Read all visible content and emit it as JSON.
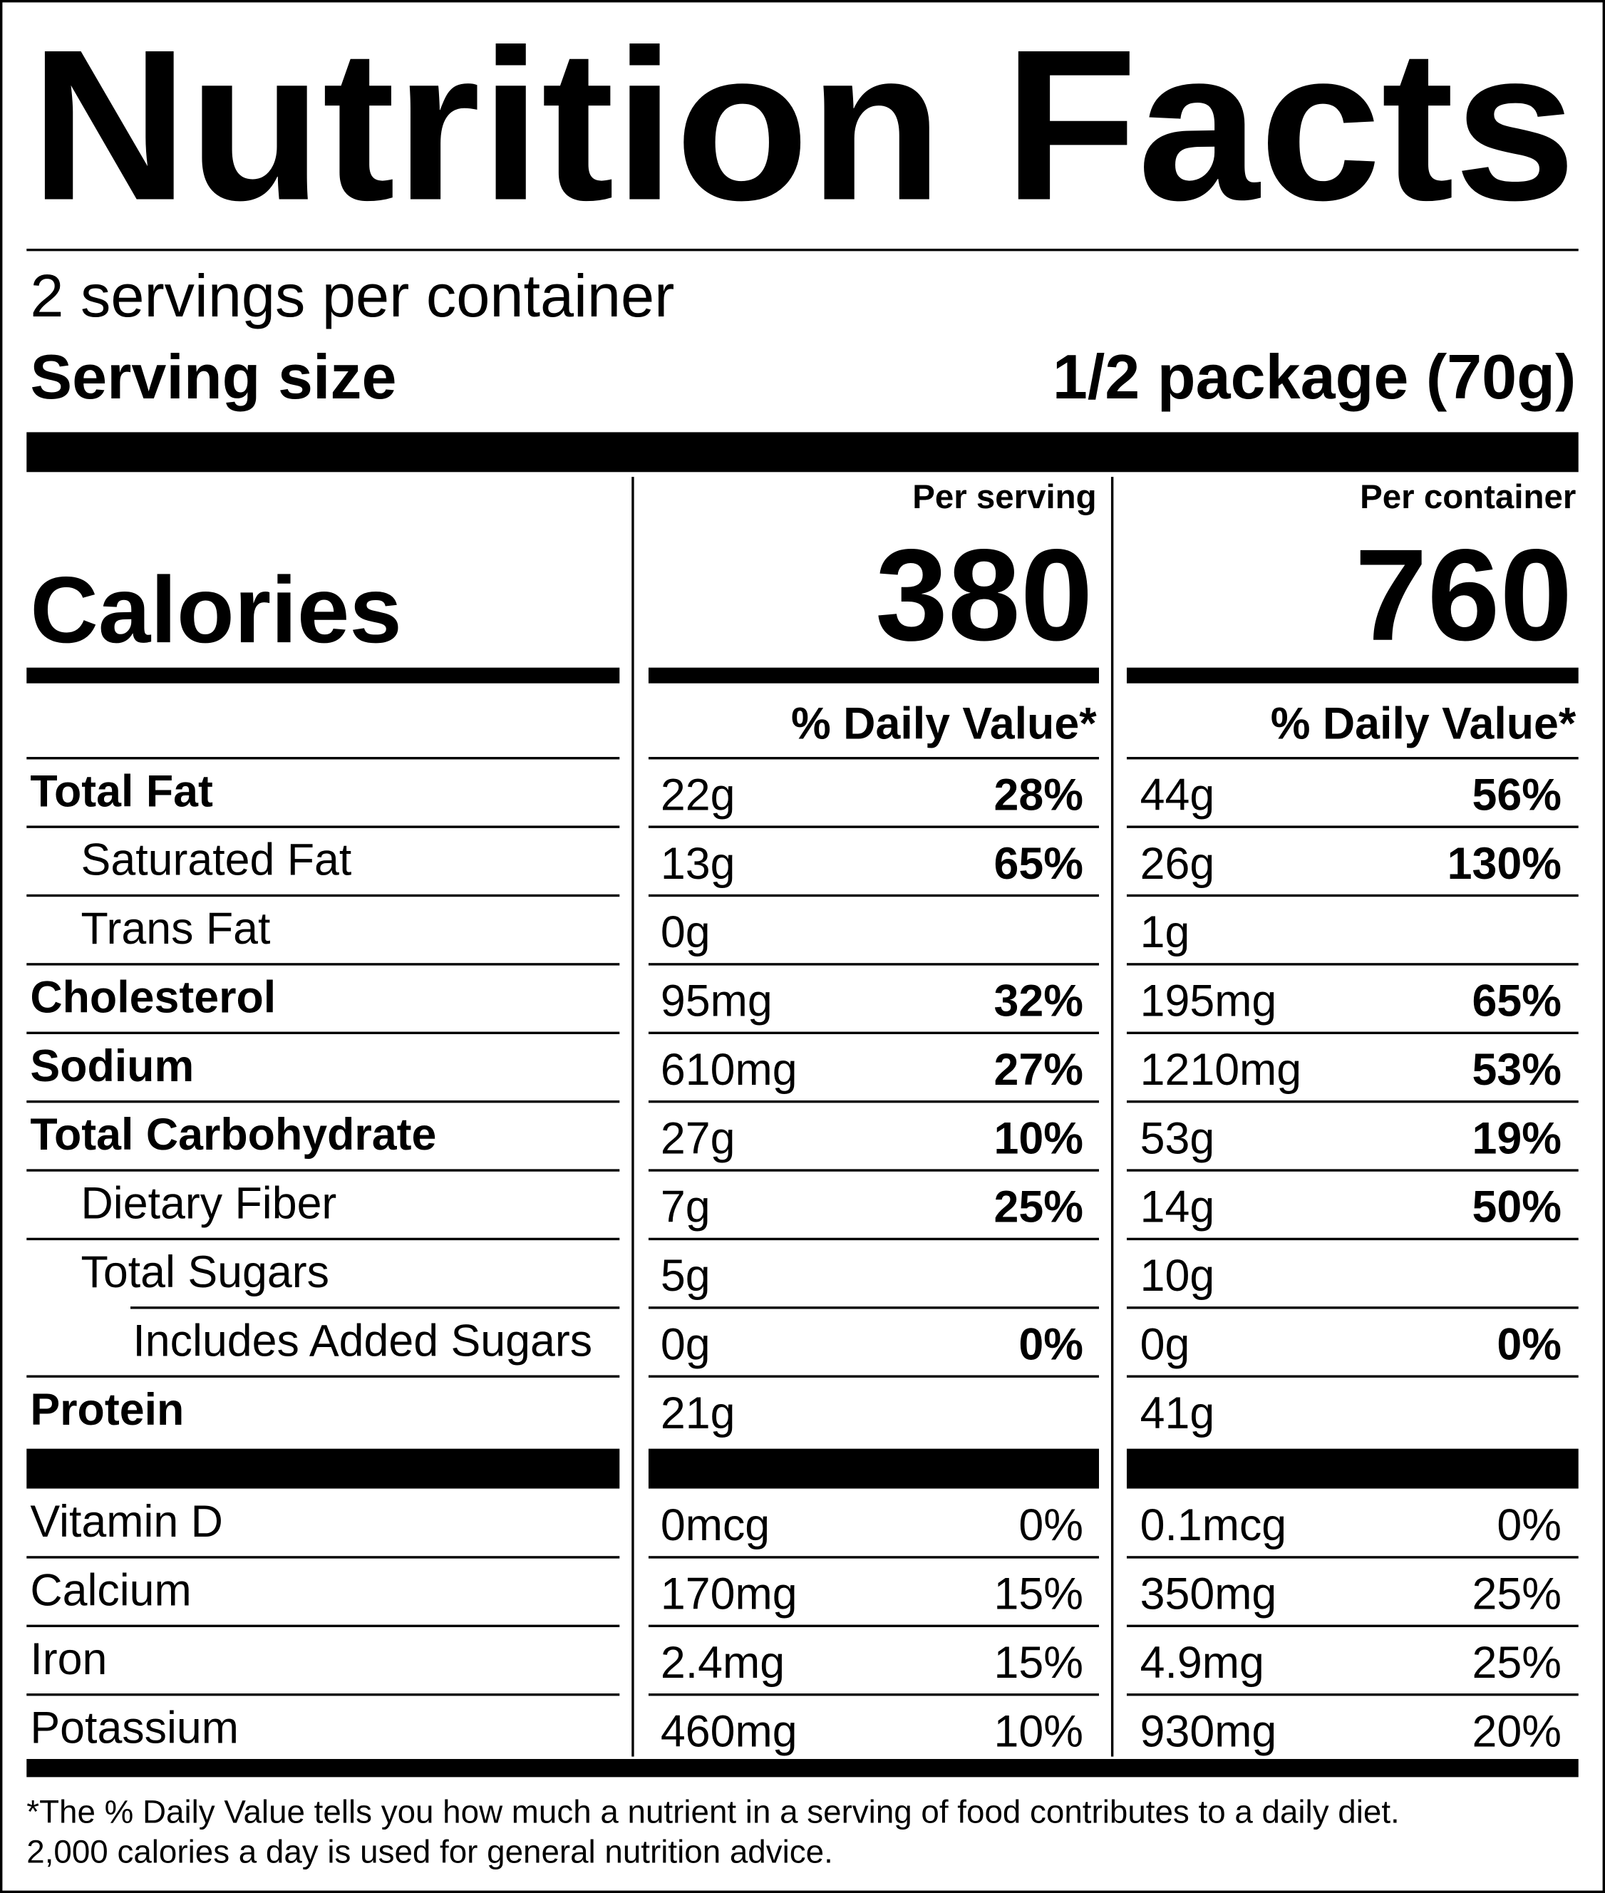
{
  "title": "Nutrition Facts",
  "servings_per_container": "2 servings per container",
  "serving_size": {
    "label": "Serving size",
    "value": "1/2 package (70g)"
  },
  "columns": [
    "Per serving",
    "Per container"
  ],
  "calories": {
    "label": "Calories",
    "values": [
      "380",
      "760"
    ]
  },
  "daily_value_header": "% Daily Value*",
  "nutrients": [
    {
      "name": "Total Fat",
      "per_serving": {
        "amount": "22g",
        "dv": "28%"
      },
      "per_container": {
        "amount": "44g",
        "dv": "56%"
      }
    },
    {
      "name": "Saturated Fat",
      "per_serving": {
        "amount": "13g",
        "dv": "65%"
      },
      "per_container": {
        "amount": "26g",
        "dv": "130%"
      }
    },
    {
      "name": "Trans Fat",
      "per_serving": {
        "amount": "0g"
      },
      "per_container": {
        "amount": "1g"
      }
    },
    {
      "name": "Cholesterol",
      "per_serving": {
        "amount": "95mg",
        "dv": "32%"
      },
      "per_container": {
        "amount": "195mg",
        "dv": "65%"
      }
    },
    {
      "name": "Sodium",
      "per_serving": {
        "amount": "610mg",
        "dv": "27%"
      },
      "per_container": {
        "amount": "1210mg",
        "dv": "53%"
      }
    },
    {
      "name": "Total Carbohydrate",
      "per_serving": {
        "amount": "27g",
        "dv": "10%"
      },
      "per_container": {
        "amount": "53g",
        "dv": "19%"
      }
    },
    {
      "name": "Dietary Fiber",
      "per_serving": {
        "amount": "7g",
        "dv": "25%"
      },
      "per_container": {
        "amount": "14g",
        "dv": "50%"
      }
    },
    {
      "name": "Total Sugars",
      "per_serving": {
        "amount": "5g"
      },
      "per_container": {
        "amount": "10g"
      }
    },
    {
      "name": "Includes Added Sugars",
      "per_serving": {
        "amount": "0g",
        "dv": "0%"
      },
      "per_container": {
        "amount": "0g",
        "dv": "0%"
      }
    },
    {
      "name": "Protein",
      "per_serving": {
        "amount": "21g"
      },
      "per_container": {
        "amount": "41g"
      }
    }
  ],
  "vitamins": [
    {
      "name": "Vitamin D",
      "per_serving": {
        "amount": "0mcg",
        "dv": "0%"
      },
      "per_container": {
        "amount": "0.1mcg",
        "dv": "0%"
      }
    },
    {
      "name": "Calcium",
      "per_serving": {
        "amount": "170mg",
        "dv": "15%"
      },
      "per_container": {
        "amount": "350mg",
        "dv": "25%"
      }
    },
    {
      "name": "Iron",
      "per_serving": {
        "amount": "2.4mg",
        "dv": "15%"
      },
      "per_container": {
        "amount": "4.9mg",
        "dv": "25%"
      }
    },
    {
      "name": "Potassium",
      "per_serving": {
        "amount": "460mg",
        "dv": "10%"
      },
      "per_container": {
        "amount": "930mg",
        "dv": "20%"
      }
    }
  ],
  "footnote": [
    "*The % Daily Value tells you how much a nutrient in a serving of food contributes to a daily diet.",
    "2,000 calories a day is used for general nutrition advice."
  ]
}
